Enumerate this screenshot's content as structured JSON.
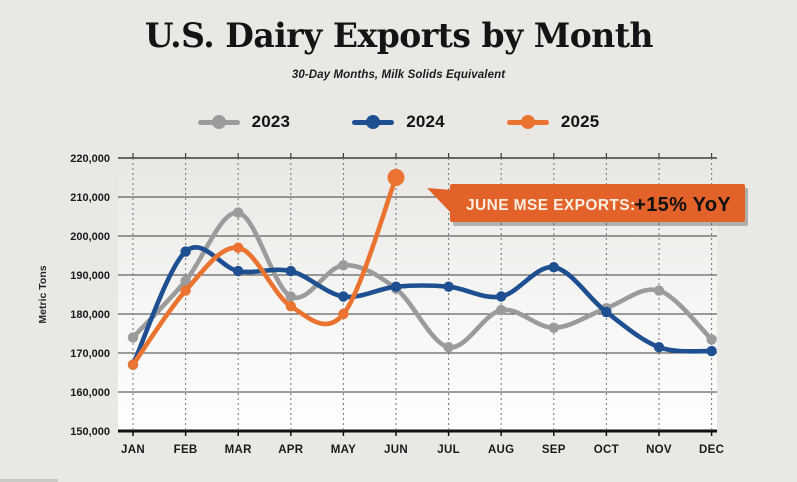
{
  "page": {
    "background": "#E9E8E5"
  },
  "chart_data": {
    "type": "line",
    "title": "U.S. Dairy Exports by Month",
    "subtitle": "30-Day Months, Milk Solids Equivalent",
    "ylabel": "Metric Tons",
    "xlabel": "",
    "ylim": [
      150000,
      220000
    ],
    "y_tick_step": 10000,
    "y_tick_labels": [
      "220,000",
      "210,000",
      "200,000",
      "190,000",
      "180,000",
      "170,000",
      "160,000",
      "150,000"
    ],
    "categories": [
      "JAN",
      "FEB",
      "MAR",
      "APR",
      "MAY",
      "JUN",
      "JUL",
      "AUG",
      "SEP",
      "OCT",
      "NOV",
      "DEC"
    ],
    "grid": {
      "horizontal": "solid",
      "vertical": "dashed"
    },
    "legend_position": "top",
    "series": [
      {
        "name": "2023",
        "color": "#9B9B9B",
        "values": [
          174000,
          188500,
          206000,
          184500,
          192500,
          186500,
          171500,
          181000,
          176500,
          181500,
          186000,
          173500
        ]
      },
      {
        "name": "2024",
        "color": "#1E4F91",
        "values": [
          167000,
          196000,
          191000,
          191000,
          184500,
          187000,
          187000,
          184500,
          192000,
          180500,
          171500,
          170500
        ]
      },
      {
        "name": "2025",
        "color": "#EA7330",
        "highlight_last_point": true,
        "values": [
          167000,
          186000,
          197000,
          182000,
          180000,
          215000
        ]
      }
    ],
    "annotation": {
      "label": "JUNE MSE EXPORTS:",
      "value": "+15% YoY",
      "bg": "#E2622A",
      "label_color": "#F8EFE0",
      "value_color": "#111111",
      "points_to": {
        "series": "2025",
        "category": "JUN"
      }
    }
  }
}
